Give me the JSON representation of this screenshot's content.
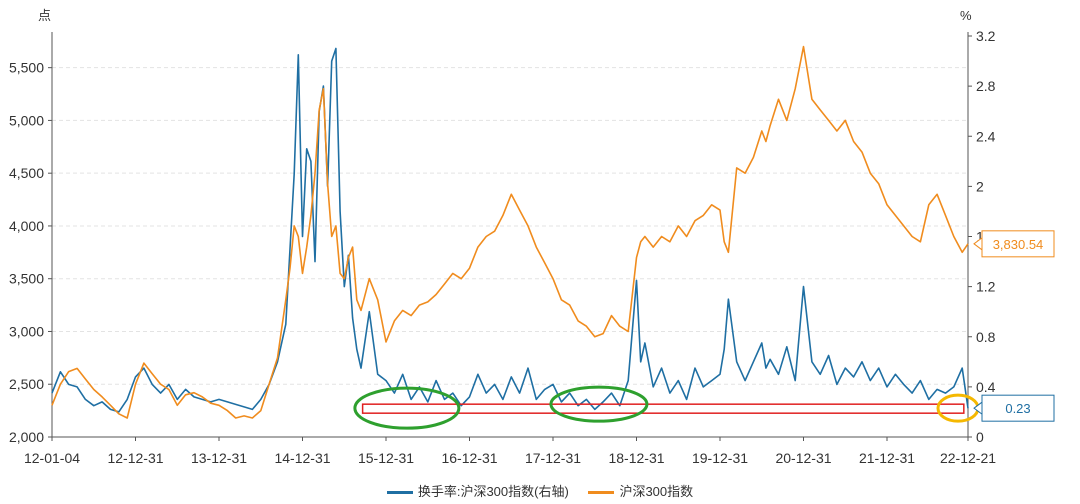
{
  "chart_data": {
    "type": "line",
    "left_axis": {
      "unit": "点",
      "ylim": [
        2000,
        5800
      ],
      "ticks": [
        "2,000",
        "2,500",
        "3,000",
        "3,500",
        "4,000",
        "4,500",
        "5,000",
        "5,500"
      ],
      "tick_values": [
        2000,
        2500,
        3000,
        3500,
        4000,
        4500,
        5000,
        5500
      ]
    },
    "right_axis": {
      "unit": "%",
      "ylim": [
        0,
        3.2
      ],
      "ticks": [
        "0",
        "0.4",
        "0.8",
        "1.2",
        "1.6",
        "2",
        "2.4",
        "2.8",
        "3.2"
      ],
      "tick_values": [
        0,
        0.4,
        0.8,
        1.2,
        1.6,
        2,
        2.4,
        2.8,
        3.2
      ]
    },
    "x_tick_labels": [
      "12-01-04",
      "12-12-31",
      "13-12-31",
      "14-12-31",
      "15-12-31",
      "16-12-31",
      "17-12-31",
      "18-12-31",
      "19-12-31",
      "20-12-31",
      "21-12-31",
      "22-12-21"
    ],
    "x_tick_values": [
      2012.0,
      2013.0,
      2014.0,
      2015.0,
      2016.0,
      2017.0,
      2018.0,
      2019.0,
      2020.0,
      2021.0,
      2022.0,
      2022.97
    ],
    "xlim": [
      2012.0,
      2022.97
    ],
    "series": [
      {
        "name": "换手率:沪深300指数(右轴)",
        "axis": "right",
        "color": "#1f6fa3",
        "x": [
          2012.0,
          2012.1,
          2012.2,
          2012.3,
          2012.4,
          2012.5,
          2012.6,
          2012.7,
          2012.8,
          2012.9,
          2013.0,
          2013.1,
          2013.2,
          2013.3,
          2013.4,
          2013.5,
          2013.6,
          2013.7,
          2013.8,
          2013.9,
          2014.0,
          2014.1,
          2014.2,
          2014.3,
          2014.4,
          2014.5,
          2014.6,
          2014.7,
          2014.8,
          2014.85,
          2014.9,
          2014.95,
          2015.0,
          2015.05,
          2015.1,
          2015.15,
          2015.2,
          2015.25,
          2015.3,
          2015.35,
          2015.4,
          2015.45,
          2015.5,
          2015.55,
          2015.6,
          2015.65,
          2015.7,
          2015.8,
          2015.9,
          2016.0,
          2016.1,
          2016.2,
          2016.3,
          2016.4,
          2016.5,
          2016.6,
          2016.7,
          2016.8,
          2016.9,
          2017.0,
          2017.1,
          2017.2,
          2017.3,
          2017.4,
          2017.5,
          2017.6,
          2017.7,
          2017.8,
          2017.9,
          2018.0,
          2018.1,
          2018.2,
          2018.3,
          2018.4,
          2018.5,
          2018.6,
          2018.7,
          2018.8,
          2018.9,
          2019.0,
          2019.05,
          2019.1,
          2019.2,
          2019.3,
          2019.4,
          2019.5,
          2019.6,
          2019.7,
          2019.8,
          2019.9,
          2020.0,
          2020.05,
          2020.1,
          2020.2,
          2020.3,
          2020.4,
          2020.5,
          2020.55,
          2020.6,
          2020.7,
          2020.8,
          2020.9,
          2021.0,
          2021.1,
          2021.2,
          2021.3,
          2021.4,
          2021.5,
          2021.6,
          2021.7,
          2021.8,
          2021.9,
          2022.0,
          2022.1,
          2022.2,
          2022.3,
          2022.4,
          2022.5,
          2022.6,
          2022.7,
          2022.8,
          2022.9,
          2022.97
        ],
        "values": [
          0.35,
          0.52,
          0.42,
          0.4,
          0.3,
          0.25,
          0.28,
          0.22,
          0.2,
          0.3,
          0.48,
          0.55,
          0.42,
          0.35,
          0.42,
          0.3,
          0.38,
          0.32,
          0.3,
          0.28,
          0.3,
          0.28,
          0.26,
          0.24,
          0.22,
          0.3,
          0.42,
          0.6,
          0.9,
          1.5,
          2.1,
          3.05,
          1.6,
          2.3,
          2.2,
          1.4,
          2.6,
          2.8,
          2.0,
          3.0,
          3.1,
          1.8,
          1.2,
          1.45,
          0.95,
          0.7,
          0.55,
          1.0,
          0.5,
          0.45,
          0.35,
          0.5,
          0.3,
          0.4,
          0.28,
          0.45,
          0.3,
          0.35,
          0.25,
          0.32,
          0.5,
          0.35,
          0.42,
          0.3,
          0.48,
          0.35,
          0.55,
          0.3,
          0.38,
          0.42,
          0.28,
          0.35,
          0.25,
          0.3,
          0.22,
          0.28,
          0.35,
          0.25,
          0.45,
          1.25,
          0.6,
          0.75,
          0.4,
          0.55,
          0.35,
          0.45,
          0.3,
          0.55,
          0.4,
          0.45,
          0.5,
          0.7,
          1.1,
          0.6,
          0.45,
          0.6,
          0.75,
          0.55,
          0.62,
          0.5,
          0.72,
          0.45,
          1.2,
          0.6,
          0.5,
          0.65,
          0.42,
          0.55,
          0.48,
          0.6,
          0.45,
          0.55,
          0.4,
          0.5,
          0.42,
          0.35,
          0.45,
          0.3,
          0.38,
          0.35,
          0.4,
          0.55,
          0.23
        ]
      },
      {
        "name": "沪深300指数",
        "axis": "left",
        "color": "#f08c1e",
        "x": [
          2012.0,
          2012.1,
          2012.2,
          2012.3,
          2012.4,
          2012.5,
          2012.6,
          2012.7,
          2012.8,
          2012.9,
          2013.0,
          2013.1,
          2013.2,
          2013.3,
          2013.4,
          2013.5,
          2013.6,
          2013.7,
          2013.8,
          2013.9,
          2014.0,
          2014.1,
          2014.2,
          2014.3,
          2014.4,
          2014.5,
          2014.6,
          2014.7,
          2014.8,
          2014.85,
          2014.9,
          2014.95,
          2015.0,
          2015.05,
          2015.1,
          2015.15,
          2015.2,
          2015.25,
          2015.3,
          2015.35,
          2015.4,
          2015.45,
          2015.5,
          2015.55,
          2015.6,
          2015.65,
          2015.7,
          2015.8,
          2015.9,
          2016.0,
          2016.1,
          2016.2,
          2016.3,
          2016.4,
          2016.5,
          2016.6,
          2016.7,
          2016.8,
          2016.9,
          2017.0,
          2017.1,
          2017.2,
          2017.3,
          2017.4,
          2017.5,
          2017.6,
          2017.7,
          2017.8,
          2017.9,
          2018.0,
          2018.1,
          2018.2,
          2018.3,
          2018.4,
          2018.5,
          2018.6,
          2018.7,
          2018.8,
          2018.9,
          2019.0,
          2019.05,
          2019.1,
          2019.2,
          2019.3,
          2019.4,
          2019.5,
          2019.6,
          2019.7,
          2019.8,
          2019.9,
          2020.0,
          2020.05,
          2020.1,
          2020.2,
          2020.3,
          2020.4,
          2020.5,
          2020.55,
          2020.6,
          2020.7,
          2020.8,
          2020.9,
          2021.0,
          2021.1,
          2021.2,
          2021.3,
          2021.4,
          2021.5,
          2021.6,
          2021.7,
          2021.8,
          2021.9,
          2022.0,
          2022.1,
          2022.2,
          2022.3,
          2022.4,
          2022.5,
          2022.6,
          2022.7,
          2022.8,
          2022.9,
          2022.97
        ],
        "values": [
          2300,
          2500,
          2620,
          2650,
          2550,
          2450,
          2380,
          2300,
          2220,
          2180,
          2500,
          2700,
          2600,
          2500,
          2450,
          2300,
          2400,
          2420,
          2380,
          2320,
          2300,
          2250,
          2180,
          2200,
          2180,
          2250,
          2500,
          2750,
          3300,
          3600,
          4000,
          3900,
          3550,
          3800,
          4100,
          4500,
          5100,
          5300,
          4400,
          3900,
          4000,
          3550,
          3500,
          3700,
          3800,
          3300,
          3200,
          3500,
          3300,
          2900,
          3100,
          3200,
          3150,
          3250,
          3280,
          3350,
          3450,
          3550,
          3500,
          3600,
          3800,
          3900,
          3950,
          4100,
          4300,
          4150,
          4000,
          3800,
          3650,
          3500,
          3300,
          3250,
          3100,
          3050,
          2950,
          2980,
          3150,
          3050,
          3000,
          3700,
          3850,
          3900,
          3800,
          3900,
          3850,
          4000,
          3900,
          4050,
          4100,
          4200,
          4150,
          3850,
          3750,
          4550,
          4500,
          4650,
          4900,
          4800,
          4950,
          5200,
          5000,
          5300,
          5700,
          5200,
          5100,
          5000,
          4900,
          5000,
          4800,
          4700,
          4500,
          4400,
          4200,
          4100,
          4000,
          3900,
          3850,
          4200,
          4300,
          4100,
          3900,
          3750,
          3830.54
        ]
      }
    ],
    "annotations": {
      "last_turnover": "0.23",
      "last_index": "3,830.54"
    }
  },
  "legend": {
    "series1": "换手率:沪深300指数(右轴)",
    "series2": "沪深300指数"
  }
}
